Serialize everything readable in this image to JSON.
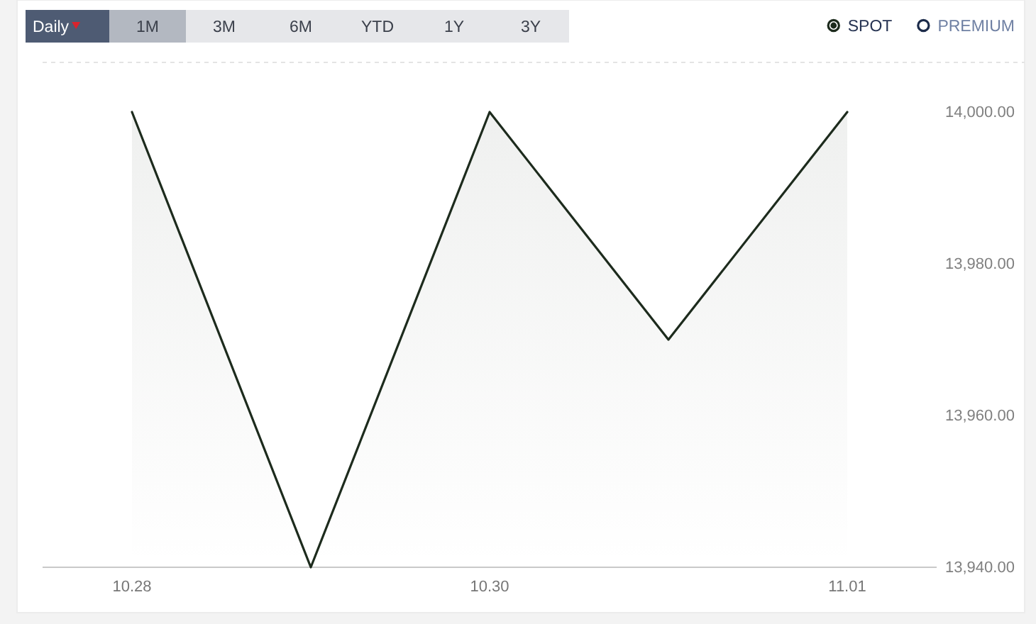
{
  "chart_data": {
    "type": "area",
    "categories": [
      "10.28",
      null,
      "10.30",
      null,
      "11.01"
    ],
    "series": [
      {
        "name": "SPOT",
        "color": "#1d2b1d",
        "values": [
          14000,
          13940,
          14000,
          13970,
          14000
        ]
      },
      {
        "name": "PREMIUM",
        "color": "#1c2b4a",
        "values": [
          null,
          null,
          null,
          null,
          null
        ]
      }
    ],
    "ylim": [
      13940,
      14000
    ],
    "yticks": [
      {
        "value": 13940,
        "label": "13,940.00"
      },
      {
        "value": 13960,
        "label": "13,960.00"
      },
      {
        "value": 13980,
        "label": "13,980.00"
      },
      {
        "value": 14000,
        "label": "14,000.00"
      }
    ],
    "legend": "top right",
    "annotations": [
      "Daily",
      "1M",
      "3M",
      "6M",
      "YTD",
      "1Y",
      "3Y"
    ]
  }
}
